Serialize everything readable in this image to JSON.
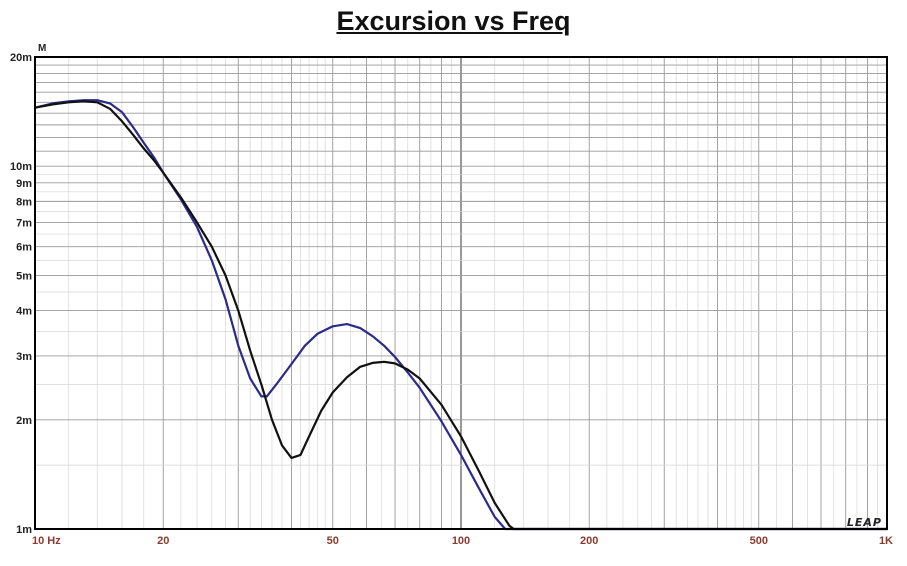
{
  "chart_data": {
    "type": "line",
    "title": "Excursion vs Freq",
    "y_unit": "M",
    "xscale": "log",
    "yscale": "log",
    "xlim": [
      10,
      1000
    ],
    "ylim": [
      0.001,
      0.02
    ],
    "grid": true,
    "watermark": "LEAP",
    "x_ticks": [
      {
        "value": 10,
        "label": "10  Hz"
      },
      {
        "value": 20,
        "label": "20"
      },
      {
        "value": 50,
        "label": "50"
      },
      {
        "value": 100,
        "label": "100"
      },
      {
        "value": 200,
        "label": "200"
      },
      {
        "value": 500,
        "label": "500"
      },
      {
        "value": 1000,
        "label": "1K"
      }
    ],
    "y_ticks": [
      {
        "value": 0.001,
        "label": "1m"
      },
      {
        "value": 0.002,
        "label": "2m"
      },
      {
        "value": 0.003,
        "label": "3m"
      },
      {
        "value": 0.004,
        "label": "4m"
      },
      {
        "value": 0.005,
        "label": "5m"
      },
      {
        "value": 0.006,
        "label": "6m"
      },
      {
        "value": 0.007,
        "label": "7m"
      },
      {
        "value": 0.008,
        "label": "8m"
      },
      {
        "value": 0.009,
        "label": "9m"
      },
      {
        "value": 0.01,
        "label": "10m"
      },
      {
        "value": 0.02,
        "label": "20m"
      }
    ],
    "series": [
      {
        "color": "#2b2b8c",
        "points": [
          [
            10,
            0.0145
          ],
          [
            11,
            0.0149
          ],
          [
            12,
            0.0151
          ],
          [
            13,
            0.0152
          ],
          [
            14,
            0.0152
          ],
          [
            15,
            0.0149
          ],
          [
            16,
            0.0141
          ],
          [
            17,
            0.0128
          ],
          [
            18,
            0.0116
          ],
          [
            19,
            0.0106
          ],
          [
            20,
            0.0096
          ],
          [
            22,
            0.0081
          ],
          [
            24,
            0.0068
          ],
          [
            26,
            0.0055
          ],
          [
            28,
            0.0043
          ],
          [
            30,
            0.0032
          ],
          [
            32,
            0.0026
          ],
          [
            34,
            0.00232
          ],
          [
            35,
            0.00232
          ],
          [
            37,
            0.00252
          ],
          [
            40,
            0.00285
          ],
          [
            43,
            0.0032
          ],
          [
            46,
            0.00345
          ],
          [
            50,
            0.00362
          ],
          [
            54,
            0.00367
          ],
          [
            58,
            0.00358
          ],
          [
            62,
            0.0034
          ],
          [
            66,
            0.0032
          ],
          [
            70,
            0.00298
          ],
          [
            75,
            0.0027
          ],
          [
            80,
            0.00245
          ],
          [
            90,
            0.00198
          ],
          [
            100,
            0.0016
          ],
          [
            110,
            0.0013
          ],
          [
            120,
            0.00108
          ],
          [
            127,
            0.001
          ],
          [
            130,
            0.001
          ],
          [
            200,
            0.001
          ],
          [
            500,
            0.001
          ],
          [
            1000,
            0.001
          ]
        ]
      },
      {
        "color": "#111111",
        "points": [
          [
            10,
            0.0145
          ],
          [
            11,
            0.0148
          ],
          [
            12,
            0.015
          ],
          [
            13,
            0.0151
          ],
          [
            14,
            0.015
          ],
          [
            15,
            0.0144
          ],
          [
            16,
            0.0133
          ],
          [
            17,
            0.0122
          ],
          [
            18,
            0.0112
          ],
          [
            19,
            0.0104
          ],
          [
            20,
            0.0096
          ],
          [
            22,
            0.0082
          ],
          [
            24,
            0.007
          ],
          [
            26,
            0.006
          ],
          [
            28,
            0.005
          ],
          [
            30,
            0.004
          ],
          [
            32,
            0.0031
          ],
          [
            34,
            0.0025
          ],
          [
            36,
            0.002
          ],
          [
            38,
            0.0017
          ],
          [
            40,
            0.00157
          ],
          [
            42,
            0.0016
          ],
          [
            44,
            0.0018
          ],
          [
            47,
            0.00212
          ],
          [
            50,
            0.00238
          ],
          [
            54,
            0.00262
          ],
          [
            58,
            0.0028
          ],
          [
            62,
            0.00287
          ],
          [
            66,
            0.00289
          ],
          [
            70,
            0.00286
          ],
          [
            75,
            0.00275
          ],
          [
            80,
            0.0026
          ],
          [
            90,
            0.0022
          ],
          [
            100,
            0.0018
          ],
          [
            110,
            0.00145
          ],
          [
            120,
            0.00118
          ],
          [
            130,
            0.00102
          ],
          [
            133,
            0.001
          ],
          [
            200,
            0.001
          ],
          [
            500,
            0.001
          ],
          [
            1000,
            0.001
          ]
        ]
      }
    ]
  }
}
